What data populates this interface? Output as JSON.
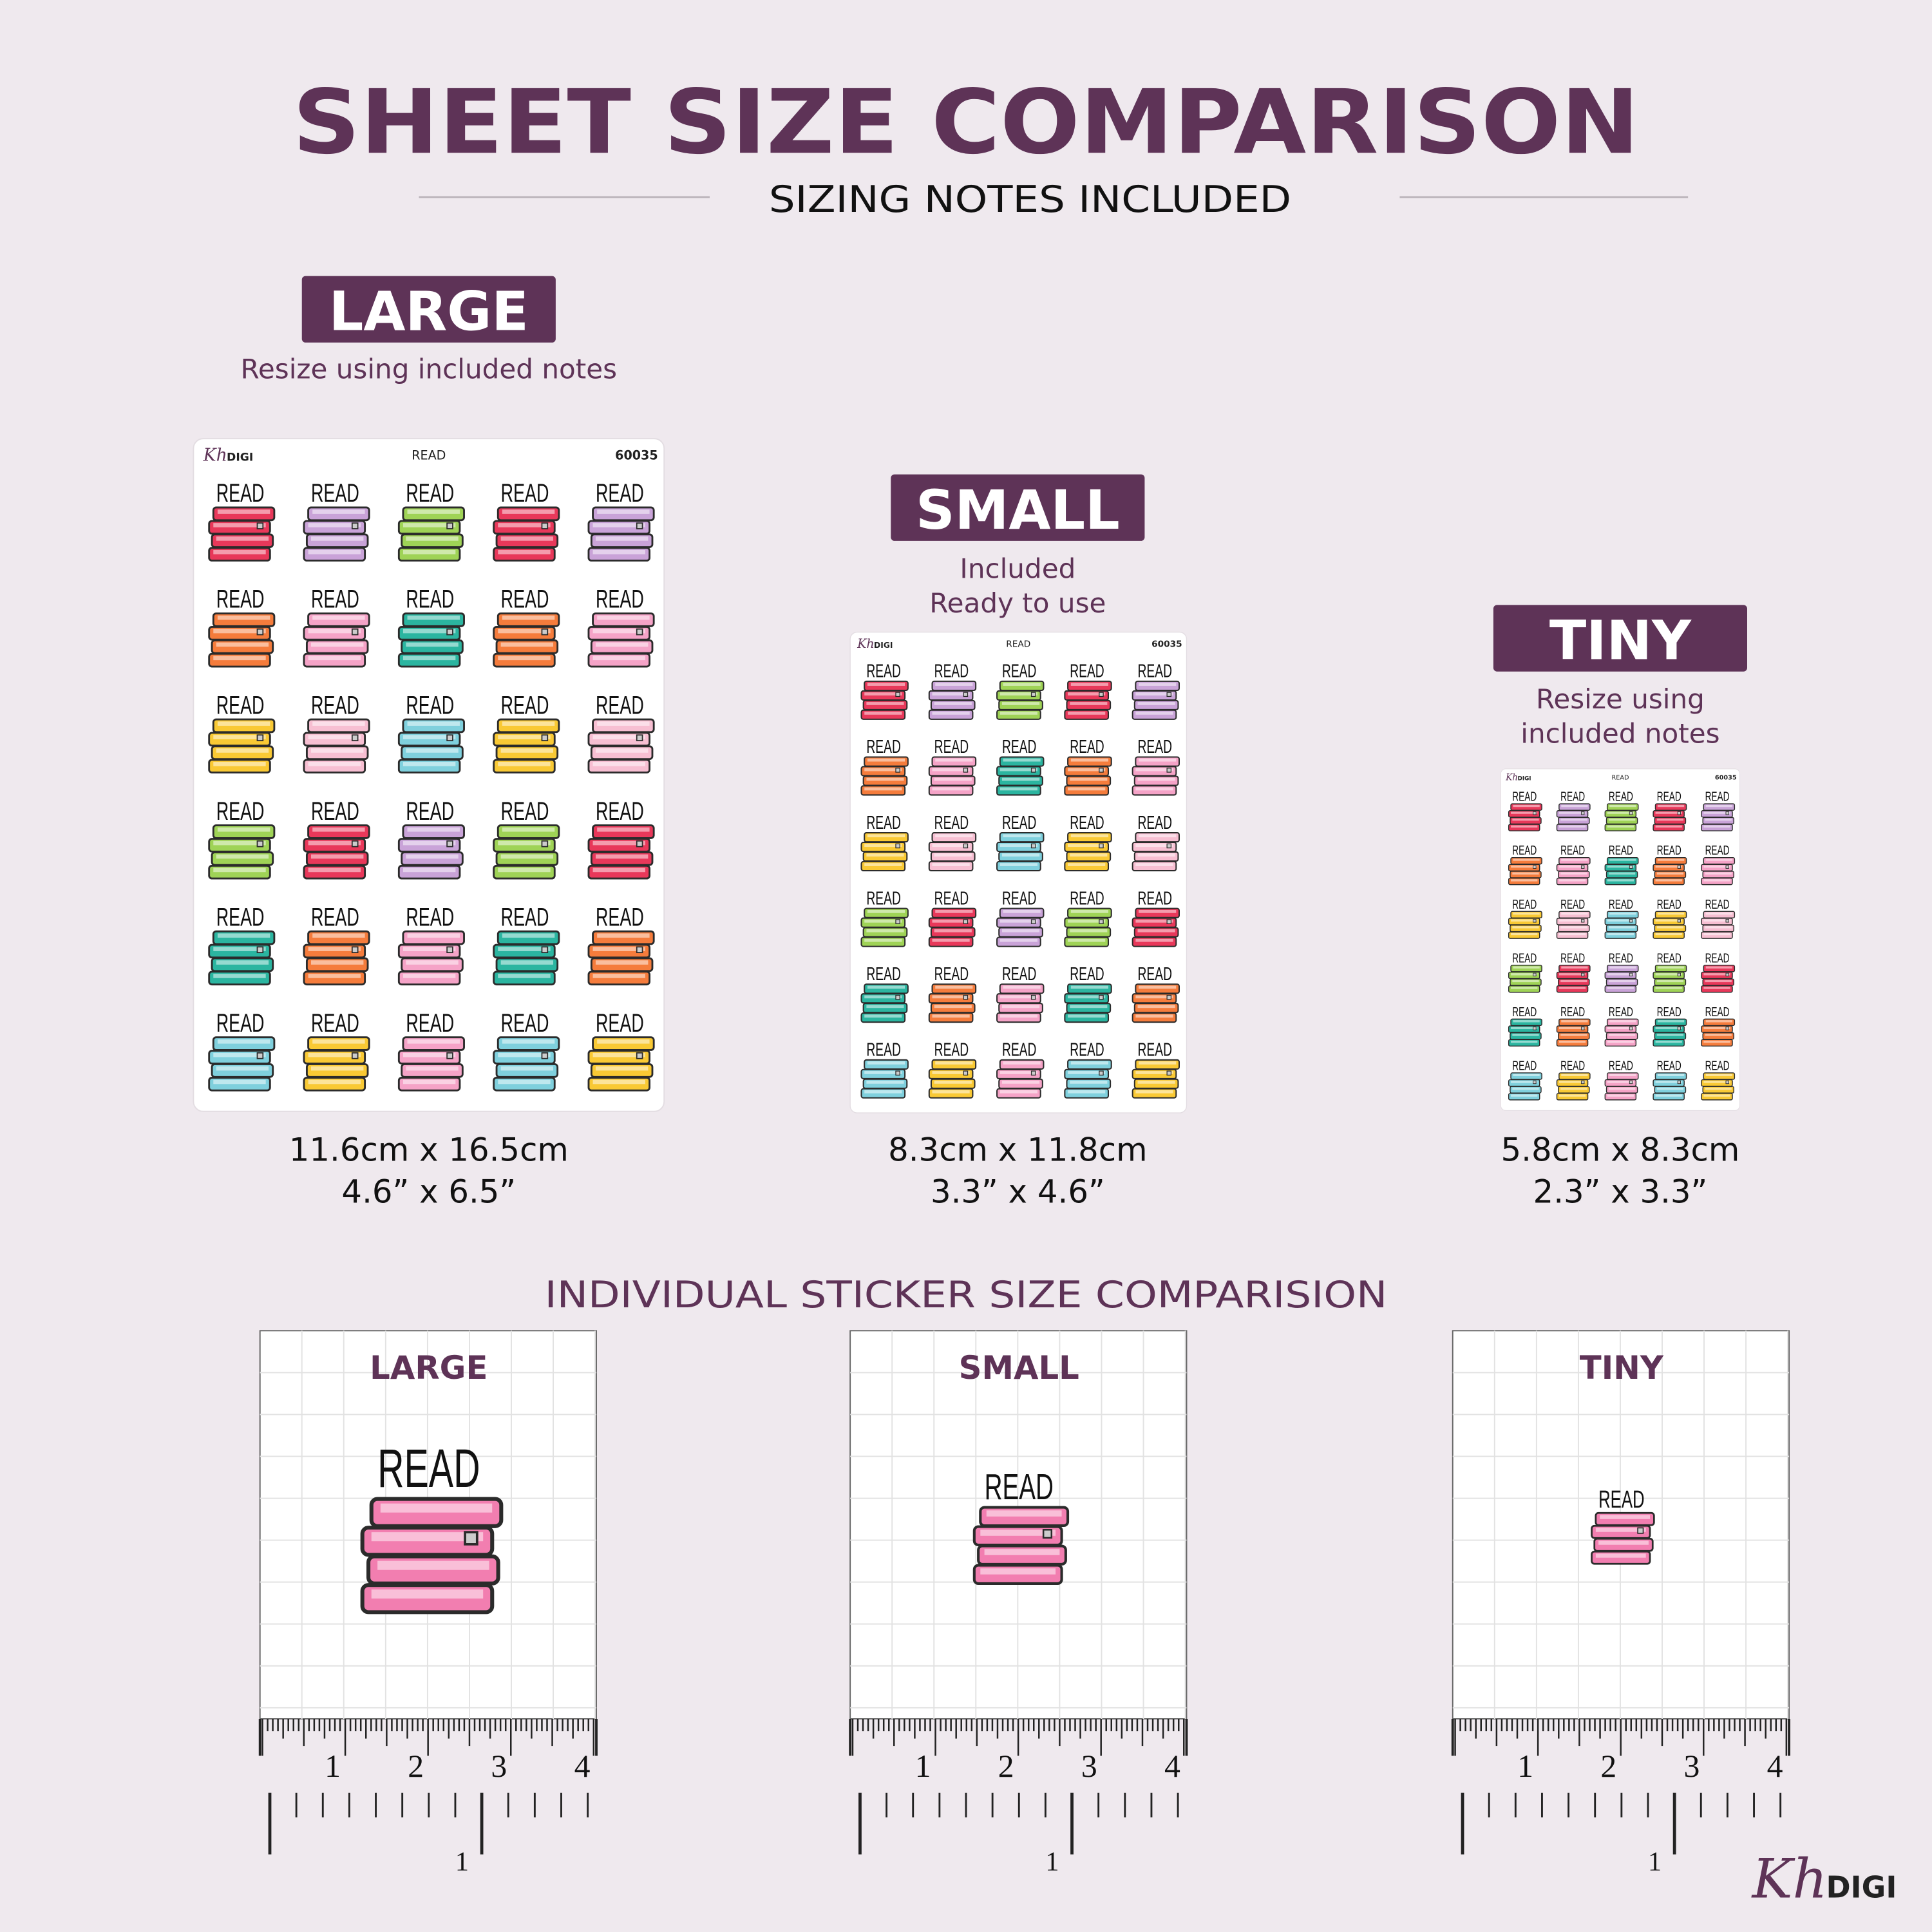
{
  "header": {
    "title": "SHEET SIZE COMPARISON",
    "subtitle": "SIZING NOTES INCLUDED"
  },
  "sizes": [
    {
      "badge": "LARGE",
      "note": [
        "Resize using included notes"
      ],
      "metric": "11.6cm x 16.5cm",
      "imperial": "4.6” x 6.5”"
    },
    {
      "badge": "SMALL",
      "note": [
        "Included",
        "Ready to use"
      ],
      "metric": "8.3cm x 11.8cm",
      "imperial": "3.3” x 4.6”"
    },
    {
      "badge": "TINY",
      "note": [
        "Resize using",
        "included notes"
      ],
      "metric": "5.8cm x 8.3cm",
      "imperial": "2.3” x 3.3”"
    }
  ],
  "sheet": {
    "brand_script": "Kh",
    "brand_text": "DIGI",
    "name": "READ",
    "code": "60035",
    "sticker_text": "READ",
    "sticker_colors": [
      [
        "#e8385a",
        "#c9a3d8",
        "#9fd356",
        "#e8385a",
        "#c9a3d8"
      ],
      [
        "#f57c3c",
        "#f5a3c7",
        "#2bb5a0",
        "#f57c3c",
        "#f5a3c7"
      ],
      [
        "#f9c934",
        "#f7bfd2",
        "#7fd0dd",
        "#f9c934",
        "#f7bfd2"
      ],
      [
        "#9fd356",
        "#e8385a",
        "#c9a3d8",
        "#9fd356",
        "#e8385a"
      ],
      [
        "#2bb5a0",
        "#f57c3c",
        "#f5a3c7",
        "#2bb5a0",
        "#f57c3c"
      ],
      [
        "#7fd0dd",
        "#f9c934",
        "#f5a3c7",
        "#7fd0dd",
        "#f9c934"
      ]
    ]
  },
  "comparison": {
    "title": "INDIVIDUAL STICKER SIZE COMPARISION",
    "panels": [
      "LARGE",
      "SMALL",
      "TINY"
    ],
    "ruler_labels": [
      "1",
      "2",
      "3",
      "4"
    ],
    "lower_ruler_label": "1",
    "sticker_color": "#f27eb0"
  },
  "logo": {
    "script": "Kh",
    "text": "DIGI"
  }
}
